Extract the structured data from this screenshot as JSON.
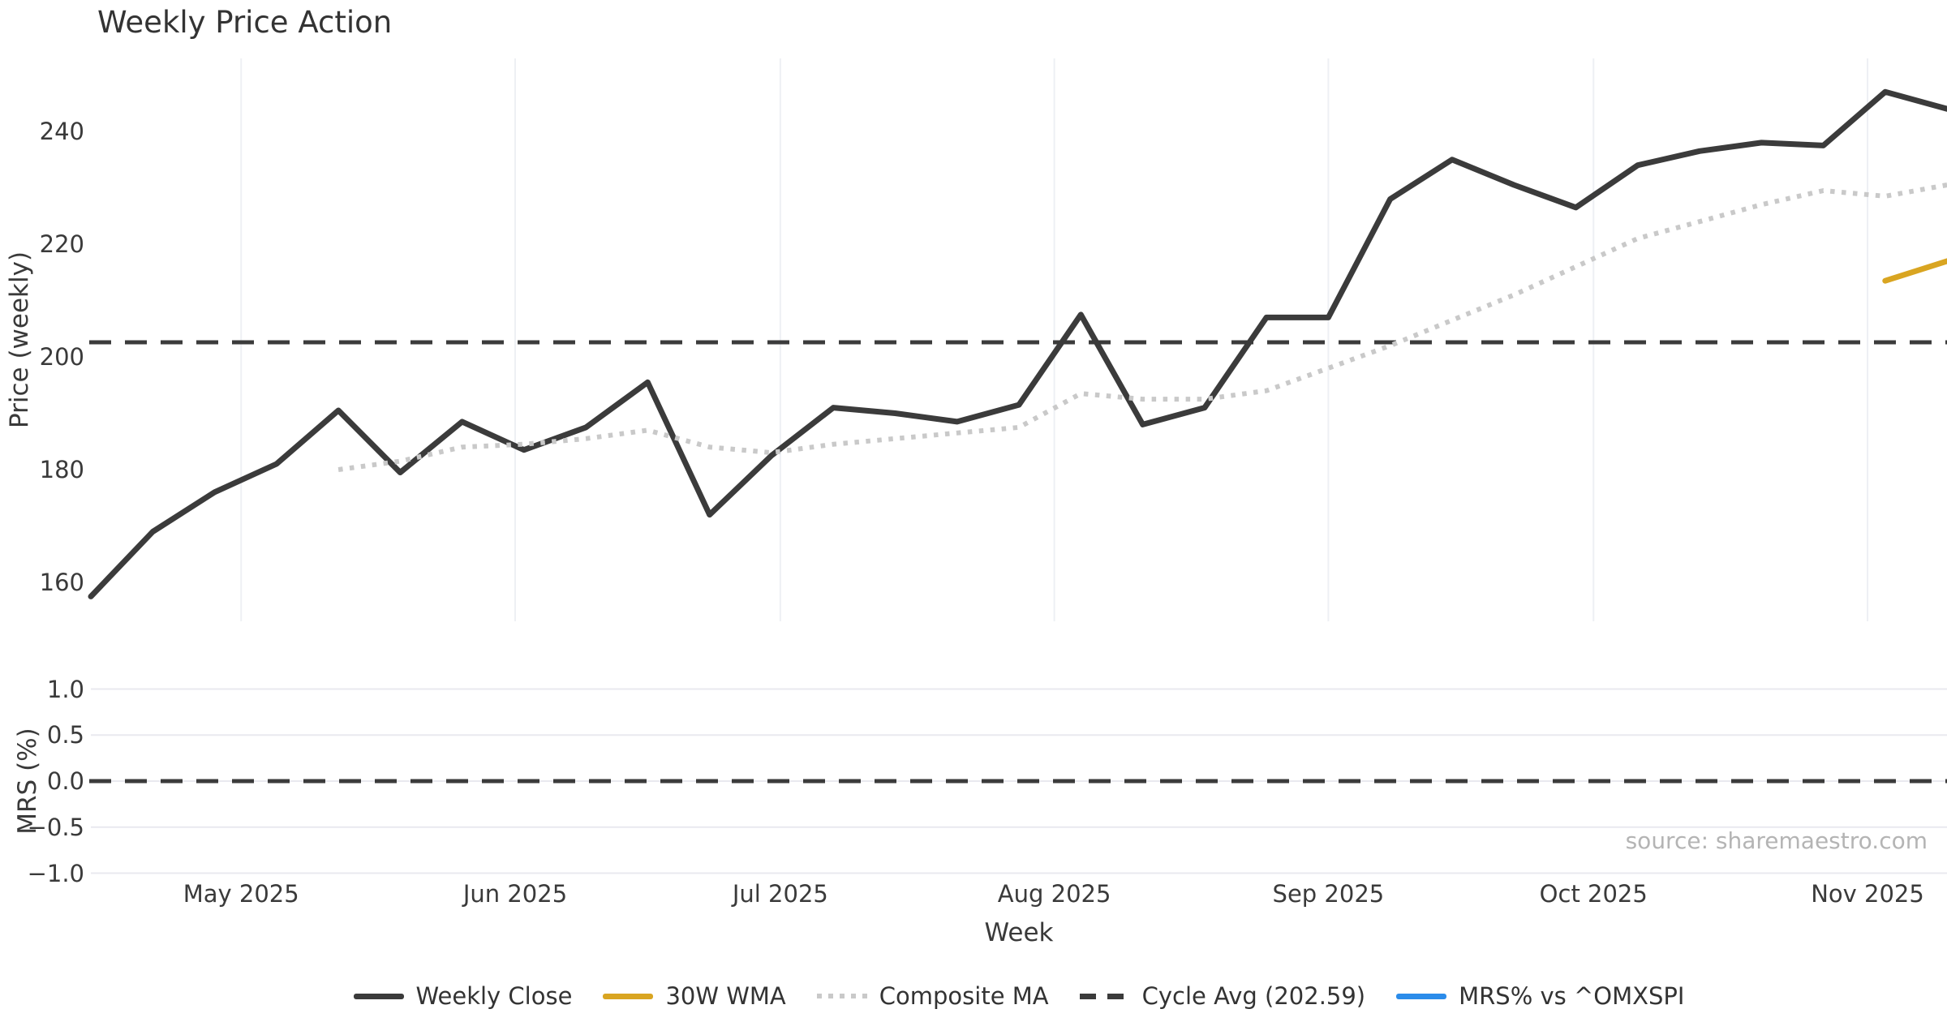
{
  "title": "Weekly Price Action",
  "source": "source: sharemaestro.com",
  "colors": {
    "weekly_close": "#3b3b3b",
    "wma": "#d9a521",
    "composite": "#c9c9c9",
    "cycle": "#3b3b3b",
    "mrs": "#2b8cea",
    "grid_vertical": "#eef0f4",
    "grid_horizontal": "#e9e9ef",
    "text": "#3a3a3a",
    "muted": "#b4b4b4"
  },
  "chart_data": [
    {
      "type": "line",
      "title": "Weekly Price Action",
      "xlabel": "Week",
      "ylabel": "Price (weekly)",
      "legend_position": "bottom center",
      "grid": "vertical month gridlines only",
      "x_start_week": "2025-04-14",
      "week_dates": [
        "2025-04-14",
        "2025-04-21",
        "2025-04-28",
        "2025-05-05",
        "2025-05-12",
        "2025-05-19",
        "2025-05-26",
        "2025-06-02",
        "2025-06-09",
        "2025-06-16",
        "2025-06-23",
        "2025-06-30",
        "2025-07-07",
        "2025-07-14",
        "2025-07-21",
        "2025-07-28",
        "2025-08-04",
        "2025-08-11",
        "2025-08-18",
        "2025-08-25",
        "2025-09-01",
        "2025-09-08",
        "2025-09-15",
        "2025-09-22",
        "2025-09-29",
        "2025-10-06",
        "2025-10-13",
        "2025-10-20",
        "2025-10-27",
        "2025-11-03",
        "2025-11-10"
      ],
      "x_tick_dates": [
        "2025-05-01",
        "2025-06-01",
        "2025-07-01",
        "2025-08-01",
        "2025-09-01",
        "2025-10-01",
        "2025-11-01"
      ],
      "x_tick_labels": [
        "May 2025",
        "Jun 2025",
        "Jul 2025",
        "Aug 2025",
        "Sep 2025",
        "Oct 2025",
        "Nov 2025"
      ],
      "yticks": [
        {
          "label": "160",
          "value": 160
        },
        {
          "label": "180",
          "value": 180
        },
        {
          "label": "200",
          "value": 200
        },
        {
          "label": "220",
          "value": 220
        },
        {
          "label": "240",
          "value": 240
        }
      ],
      "ylim": [
        153,
        253
      ],
      "series": [
        {
          "name": "Weekly Close",
          "style": "solid",
          "color": "#3b3b3b",
          "width": 7,
          "values": [
            157.5,
            169,
            176,
            181,
            190.5,
            179.5,
            188.5,
            183.5,
            187.5,
            195.5,
            172,
            182.5,
            191,
            190,
            188.5,
            191.5,
            207.5,
            188,
            191,
            207,
            207,
            228,
            235,
            230.5,
            226.5,
            234,
            236.5,
            238,
            237.5,
            247,
            244
          ]
        },
        {
          "name": "30W WMA",
          "style": "solid",
          "color": "#d9a521",
          "width": 7,
          "values": [
            null,
            null,
            null,
            null,
            null,
            null,
            null,
            null,
            null,
            null,
            null,
            null,
            null,
            null,
            null,
            null,
            null,
            null,
            null,
            null,
            null,
            null,
            null,
            null,
            null,
            null,
            null,
            null,
            null,
            213.5,
            217
          ]
        },
        {
          "name": "Composite MA",
          "style": "dotted",
          "color": "#c9c9c9",
          "width": 6,
          "values": [
            null,
            null,
            null,
            null,
            180,
            181.5,
            184,
            184.5,
            185.5,
            187,
            184,
            183,
            184.5,
            185.5,
            186.5,
            187.5,
            193.5,
            192.5,
            192.5,
            194,
            198,
            202,
            206.5,
            211,
            216,
            221,
            224,
            227,
            229.5,
            228.5,
            230.5
          ]
        },
        {
          "name": "Cycle Avg",
          "style": "dashed-horizontal",
          "color": "#3b3b3b",
          "width": 5,
          "value": 202.59
        }
      ]
    },
    {
      "type": "line",
      "xlabel": "Week",
      "ylabel": "MRS (%)",
      "grid": "horizontal gridlines",
      "yticks": [
        {
          "label": "1.0",
          "value": 1.0
        },
        {
          "label": "0.5",
          "value": 0.5
        },
        {
          "label": "0.0",
          "value": 0.0
        },
        {
          "label": "−0.5",
          "value": -0.5
        },
        {
          "label": "−1.0",
          "value": -1.0
        }
      ],
      "ylim": [
        -1.15,
        1.15
      ],
      "series": [
        {
          "name": "MRS% vs ^OMXSPI",
          "style": "solid",
          "color": "#2b8cea",
          "width": 6,
          "values": []
        },
        {
          "name": "Zero line",
          "style": "dashed-horizontal",
          "color": "#3b3b3b",
          "width": 5,
          "value": 0.0
        }
      ]
    }
  ],
  "legend": [
    {
      "label": "Weekly Close",
      "style": "solid",
      "color": "#3b3b3b"
    },
    {
      "label": "30W WMA",
      "style": "solid",
      "color": "#d9a521"
    },
    {
      "label": "Composite MA",
      "style": "dotted",
      "color": "#c9c9c9"
    },
    {
      "label": "Cycle Avg (202.59)",
      "style": "dashed",
      "color": "#3b3b3b"
    },
    {
      "label": "MRS% vs ^OMXSPI",
      "style": "solid",
      "color": "#2b8cea"
    }
  ]
}
